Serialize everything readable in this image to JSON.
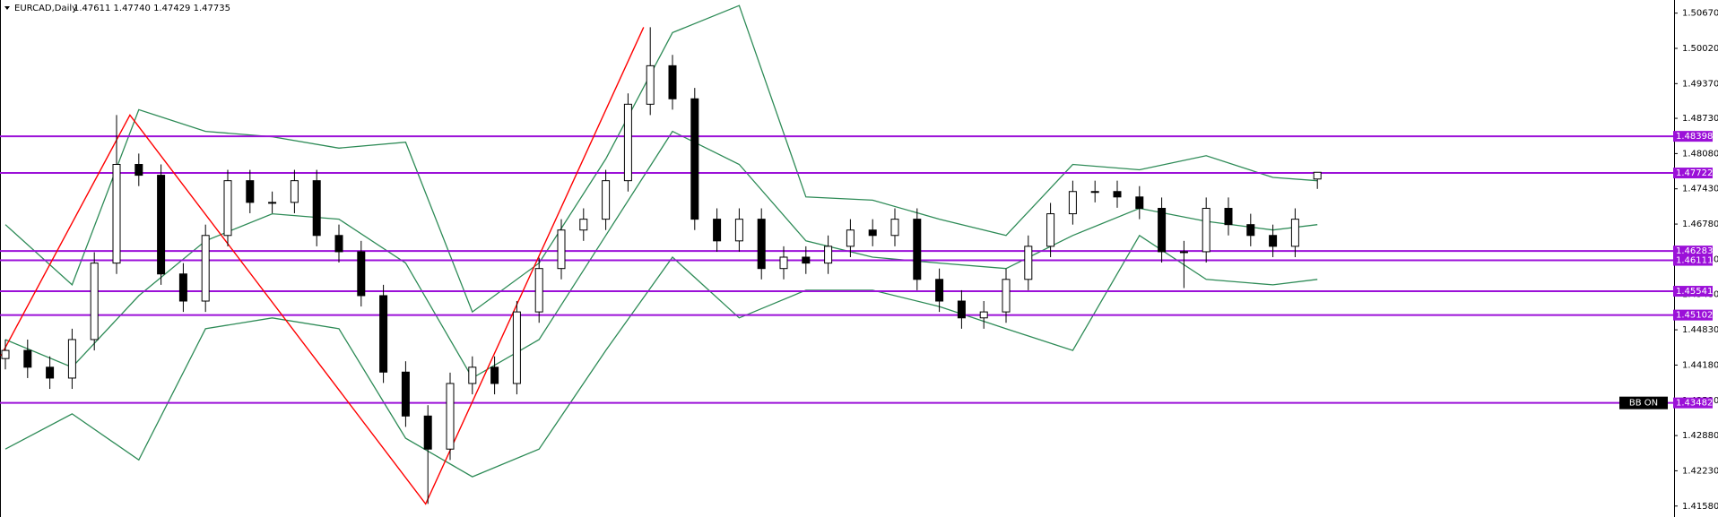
{
  "chart_data": {
    "type": "candlestick",
    "title": "EURCAD,Daily",
    "quote": "1.47611 1.47740 1.47429 1.47735",
    "annotation": "BB ON",
    "ylim": [
      1.41378,
      1.50912
    ],
    "yticks": [
      {
        "value": 1.5067,
        "label": "1.50670"
      },
      {
        "value": 1.5002,
        "label": "1.50020"
      },
      {
        "value": 1.4937,
        "label": "1.49370"
      },
      {
        "value": 1.4873,
        "label": "1.48730"
      },
      {
        "value": 1.4808,
        "label": "1.48080"
      },
      {
        "value": 1.4743,
        "label": "1.47430"
      },
      {
        "value": 1.4678,
        "label": "1.46780"
      },
      {
        "value": 1.4613,
        "label": "1.46130"
      },
      {
        "value": 1.4548,
        "label": "1.45480"
      },
      {
        "value": 1.4483,
        "label": "1.44830"
      },
      {
        "value": 1.4418,
        "label": "1.44180"
      },
      {
        "value": 1.4353,
        "label": "1.43530"
      },
      {
        "value": 1.4288,
        "label": "1.42880"
      },
      {
        "value": 1.4223,
        "label": "1.42230"
      },
      {
        "value": 1.4158,
        "label": "1.41580"
      }
    ],
    "levels": [
      1.48398,
      1.47722,
      1.46283,
      1.46111,
      1.45541,
      1.45102,
      1.43482
    ],
    "level_color": "#9b10d8",
    "up_color": "#ffffff",
    "down_color": "#000000",
    "candles": {
      "open": [
        1.443,
        1.4445,
        1.4414,
        1.4394,
        1.4465,
        1.4606,
        1.4788,
        1.4768,
        1.4586,
        1.4536,
        1.4657,
        1.4758,
        1.4718,
        1.4718,
        1.4758,
        1.4657,
        1.4627,
        1.4546,
        1.4405,
        1.4324,
        1.4263,
        1.4384,
        1.4414,
        1.4384,
        1.4516,
        1.4596,
        1.4667,
        1.4687,
        1.4758,
        1.4899,
        1.497,
        1.4909,
        1.4687,
        1.4647,
        1.4687,
        1.4596,
        1.4617,
        1.4606,
        1.4637,
        1.4667,
        1.4657,
        1.4687,
        1.4576,
        1.4536,
        1.4505,
        1.4516,
        1.4576,
        1.4637,
        1.4697,
        1.4738,
        1.4738,
        1.4728,
        1.4707,
        1.4627,
        1.4627,
        1.4707,
        1.4677,
        1.4657,
        1.4637,
        1.47611
      ],
      "high": [
        1.4465,
        1.4465,
        1.4434,
        1.4485,
        1.4626,
        1.4879,
        1.4808,
        1.4788,
        1.4606,
        1.4677,
        1.4778,
        1.4778,
        1.4738,
        1.4778,
        1.4778,
        1.4677,
        1.4647,
        1.4566,
        1.4425,
        1.4344,
        1.4404,
        1.4434,
        1.4434,
        1.4536,
        1.4616,
        1.4687,
        1.4707,
        1.4778,
        1.4919,
        1.5041,
        1.499,
        1.4929,
        1.4707,
        1.4707,
        1.4707,
        1.4637,
        1.4637,
        1.4657,
        1.4687,
        1.4687,
        1.4707,
        1.4707,
        1.4596,
        1.4556,
        1.4536,
        1.4596,
        1.4657,
        1.4717,
        1.4758,
        1.4758,
        1.4758,
        1.4748,
        1.4727,
        1.4647,
        1.4727,
        1.4727,
        1.4697,
        1.4677,
        1.4707,
        1.4774
      ],
      "low": [
        1.441,
        1.4394,
        1.4374,
        1.4374,
        1.4445,
        1.4586,
        1.4748,
        1.4566,
        1.4516,
        1.4516,
        1.4637,
        1.4698,
        1.4698,
        1.4698,
        1.4637,
        1.4607,
        1.4526,
        1.4385,
        1.4304,
        1.4162,
        1.4243,
        1.4364,
        1.4364,
        1.4364,
        1.4496,
        1.4576,
        1.4647,
        1.4667,
        1.4738,
        1.4879,
        1.4889,
        1.4667,
        1.4627,
        1.4627,
        1.4576,
        1.4576,
        1.4586,
        1.4586,
        1.4617,
        1.4637,
        1.4637,
        1.4556,
        1.4516,
        1.4485,
        1.4485,
        1.4496,
        1.4556,
        1.4617,
        1.4677,
        1.4718,
        1.4708,
        1.4687,
        1.4607,
        1.456,
        1.4607,
        1.4657,
        1.4637,
        1.4617,
        1.4617,
        1.47429
      ],
      "close": [
        1.4445,
        1.4414,
        1.4394,
        1.4465,
        1.4606,
        1.4788,
        1.4768,
        1.4586,
        1.4536,
        1.4657,
        1.4758,
        1.4718,
        1.4718,
        1.4758,
        1.4657,
        1.4627,
        1.4546,
        1.4405,
        1.4324,
        1.4263,
        1.4384,
        1.4414,
        1.4384,
        1.4516,
        1.4596,
        1.4667,
        1.4687,
        1.4758,
        1.4899,
        1.497,
        1.4909,
        1.4687,
        1.4647,
        1.4687,
        1.4596,
        1.4617,
        1.4606,
        1.4637,
        1.4667,
        1.4657,
        1.4687,
        1.4576,
        1.4536,
        1.4505,
        1.4516,
        1.4576,
        1.4637,
        1.4697,
        1.4738,
        1.4738,
        1.4728,
        1.4707,
        1.4627,
        1.4627,
        1.4707,
        1.4677,
        1.4657,
        1.4637,
        1.4687,
        1.47735
      ]
    },
    "bands": {
      "color": "#2e8b57",
      "x": [
        0,
        3,
        6,
        9,
        12,
        15,
        18,
        21,
        24,
        27,
        30,
        33,
        36,
        39,
        42,
        45,
        48,
        51,
        54,
        57,
        59
      ],
      "upper": [
        1.4677,
        1.4566,
        1.4889,
        1.4849,
        1.4839,
        1.4818,
        1.4829,
        1.4516,
        1.4606,
        1.4798,
        1.5031,
        1.5081,
        1.4728,
        1.4722,
        1.4687,
        1.4657,
        1.4788,
        1.4778,
        1.4804,
        1.4764,
        1.4758
      ],
      "middle": [
        1.4465,
        1.4414,
        1.4546,
        1.4647,
        1.4697,
        1.4687,
        1.4606,
        1.4394,
        1.4465,
        1.4657,
        1.4849,
        1.4788,
        1.4647,
        1.4617,
        1.4606,
        1.4596,
        1.4657,
        1.4707,
        1.4683,
        1.4667,
        1.4677
      ],
      "lower": [
        1.4263,
        1.4328,
        1.4243,
        1.4485,
        1.4505,
        1.4485,
        1.4283,
        1.4212,
        1.4263,
        1.4445,
        1.4617,
        1.4505,
        1.4556,
        1.4556,
        1.4526,
        1.4485,
        1.4445,
        1.4657,
        1.4576,
        1.4566,
        1.4576
      ]
    },
    "zigzag": {
      "color": "#ff0000",
      "x": [
        -0.2,
        5.6,
        18.9,
        28.7
      ],
      "values": [
        1.4435,
        1.4879,
        1.4162,
        1.5041
      ]
    }
  }
}
